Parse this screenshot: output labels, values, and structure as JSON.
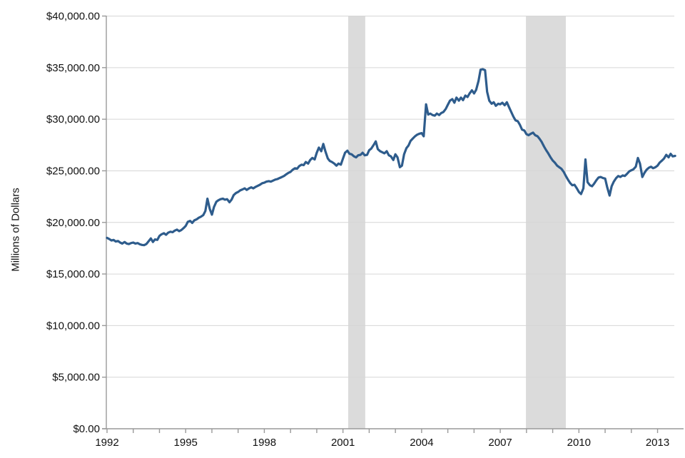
{
  "chart_data": {
    "type": "line",
    "title": "",
    "xlabel": "",
    "ylabel": "Millions of Dollars",
    "x_range": [
      1992,
      2013.75
    ],
    "ylim": [
      0,
      40000
    ],
    "grid": true,
    "legend": "none",
    "line_color": "#2E5C8C",
    "recession_band_color": "#DBDBDB",
    "gridline_color": "#D6D6D6",
    "axis_color": "#999999",
    "y_ticks": [
      {
        "value": 0,
        "label": "$0.00"
      },
      {
        "value": 5000,
        "label": "$5,000.00"
      },
      {
        "value": 10000,
        "label": "$10,000.00"
      },
      {
        "value": 15000,
        "label": "$15,000.00"
      },
      {
        "value": 20000,
        "label": "$20,000.00"
      },
      {
        "value": 25000,
        "label": "$25,000.00"
      },
      {
        "value": 30000,
        "label": "$30,000.00"
      },
      {
        "value": 35000,
        "label": "$35,000.00"
      },
      {
        "value": 40000,
        "label": "$40,000.00"
      }
    ],
    "x_minor_tick_years": [
      1992,
      1993,
      1994,
      1995,
      1996,
      1997,
      1998,
      1999,
      2000,
      2001,
      2002,
      2003,
      2004,
      2005,
      2006,
      2007,
      2008,
      2009,
      2010,
      2011,
      2012,
      2013
    ],
    "x_ticks": [
      {
        "year": 1992,
        "label": "1992"
      },
      {
        "year": 1995,
        "label": "1995"
      },
      {
        "year": 1998,
        "label": "1998"
      },
      {
        "year": 2001,
        "label": "2001"
      },
      {
        "year": 2004,
        "label": "2004"
      },
      {
        "year": 2007,
        "label": "2007"
      },
      {
        "year": 2010,
        "label": "2010"
      },
      {
        "year": 2013,
        "label": "2013"
      }
    ],
    "recession_bands": [
      {
        "start": 2001.2,
        "end": 2001.85
      },
      {
        "start": 2007.98,
        "end": 2009.5
      }
    ],
    "series": [
      {
        "name": "Millions of Dollars",
        "points": [
          [
            1992.0,
            18500
          ],
          [
            1992.08,
            18400
          ],
          [
            1992.17,
            18250
          ],
          [
            1992.25,
            18300
          ],
          [
            1992.33,
            18150
          ],
          [
            1992.42,
            18200
          ],
          [
            1992.5,
            18050
          ],
          [
            1992.58,
            17950
          ],
          [
            1992.67,
            18100
          ],
          [
            1992.75,
            17950
          ],
          [
            1992.83,
            17900
          ],
          [
            1992.92,
            18000
          ],
          [
            1993.0,
            18050
          ],
          [
            1993.08,
            17950
          ],
          [
            1993.17,
            18000
          ],
          [
            1993.25,
            17880
          ],
          [
            1993.33,
            17820
          ],
          [
            1993.42,
            17800
          ],
          [
            1993.5,
            17900
          ],
          [
            1993.58,
            18150
          ],
          [
            1993.67,
            18450
          ],
          [
            1993.75,
            18100
          ],
          [
            1993.83,
            18350
          ],
          [
            1993.92,
            18300
          ],
          [
            1994.0,
            18700
          ],
          [
            1994.08,
            18850
          ],
          [
            1994.17,
            18950
          ],
          [
            1994.25,
            18800
          ],
          [
            1994.33,
            19000
          ],
          [
            1994.42,
            19100
          ],
          [
            1994.5,
            19050
          ],
          [
            1994.58,
            19200
          ],
          [
            1994.67,
            19300
          ],
          [
            1994.75,
            19150
          ],
          [
            1994.83,
            19250
          ],
          [
            1994.92,
            19450
          ],
          [
            1995.0,
            19650
          ],
          [
            1995.08,
            20050
          ],
          [
            1995.17,
            20150
          ],
          [
            1995.25,
            19950
          ],
          [
            1995.33,
            20200
          ],
          [
            1995.42,
            20300
          ],
          [
            1995.5,
            20450
          ],
          [
            1995.58,
            20550
          ],
          [
            1995.67,
            20700
          ],
          [
            1995.75,
            21100
          ],
          [
            1995.83,
            22300
          ],
          [
            1995.92,
            21300
          ],
          [
            1996.0,
            20750
          ],
          [
            1996.08,
            21500
          ],
          [
            1996.17,
            22000
          ],
          [
            1996.25,
            22150
          ],
          [
            1996.33,
            22250
          ],
          [
            1996.42,
            22300
          ],
          [
            1996.5,
            22200
          ],
          [
            1996.58,
            22250
          ],
          [
            1996.67,
            21950
          ],
          [
            1996.75,
            22200
          ],
          [
            1996.83,
            22650
          ],
          [
            1996.92,
            22850
          ],
          [
            1997.0,
            22950
          ],
          [
            1997.08,
            23100
          ],
          [
            1997.17,
            23200
          ],
          [
            1997.25,
            23300
          ],
          [
            1997.33,
            23150
          ],
          [
            1997.42,
            23300
          ],
          [
            1997.5,
            23400
          ],
          [
            1997.58,
            23300
          ],
          [
            1997.67,
            23450
          ],
          [
            1997.75,
            23550
          ],
          [
            1997.83,
            23650
          ],
          [
            1997.92,
            23800
          ],
          [
            1998.0,
            23850
          ],
          [
            1998.08,
            23950
          ],
          [
            1998.17,
            24000
          ],
          [
            1998.25,
            23950
          ],
          [
            1998.33,
            24050
          ],
          [
            1998.42,
            24150
          ],
          [
            1998.5,
            24200
          ],
          [
            1998.58,
            24300
          ],
          [
            1998.67,
            24400
          ],
          [
            1998.75,
            24500
          ],
          [
            1998.83,
            24650
          ],
          [
            1998.92,
            24800
          ],
          [
            1999.0,
            24900
          ],
          [
            1999.08,
            25100
          ],
          [
            1999.17,
            25250
          ],
          [
            1999.25,
            25200
          ],
          [
            1999.33,
            25450
          ],
          [
            1999.42,
            25600
          ],
          [
            1999.5,
            25550
          ],
          [
            1999.58,
            25850
          ],
          [
            1999.67,
            25700
          ],
          [
            1999.75,
            26050
          ],
          [
            1999.83,
            26250
          ],
          [
            1999.92,
            26100
          ],
          [
            2000.0,
            26750
          ],
          [
            2000.08,
            27250
          ],
          [
            2000.17,
            26900
          ],
          [
            2000.25,
            27600
          ],
          [
            2000.33,
            26900
          ],
          [
            2000.42,
            26200
          ],
          [
            2000.5,
            25950
          ],
          [
            2000.58,
            25850
          ],
          [
            2000.67,
            25700
          ],
          [
            2000.75,
            25500
          ],
          [
            2000.83,
            25700
          ],
          [
            2000.92,
            25600
          ],
          [
            2001.0,
            26200
          ],
          [
            2001.08,
            26750
          ],
          [
            2001.17,
            26950
          ],
          [
            2001.25,
            26650
          ],
          [
            2001.33,
            26600
          ],
          [
            2001.42,
            26400
          ],
          [
            2001.5,
            26300
          ],
          [
            2001.58,
            26500
          ],
          [
            2001.67,
            26550
          ],
          [
            2001.75,
            26750
          ],
          [
            2001.83,
            26500
          ],
          [
            2001.92,
            26550
          ],
          [
            2002.0,
            27000
          ],
          [
            2002.08,
            27150
          ],
          [
            2002.17,
            27500
          ],
          [
            2002.25,
            27850
          ],
          [
            2002.33,
            27100
          ],
          [
            2002.42,
            26900
          ],
          [
            2002.5,
            26800
          ],
          [
            2002.58,
            26700
          ],
          [
            2002.67,
            26900
          ],
          [
            2002.75,
            26500
          ],
          [
            2002.83,
            26400
          ],
          [
            2002.92,
            26050
          ],
          [
            2003.0,
            26600
          ],
          [
            2003.08,
            26300
          ],
          [
            2003.17,
            25350
          ],
          [
            2003.25,
            25500
          ],
          [
            2003.33,
            26600
          ],
          [
            2003.42,
            27200
          ],
          [
            2003.5,
            27450
          ],
          [
            2003.58,
            27900
          ],
          [
            2003.67,
            28150
          ],
          [
            2003.75,
            28350
          ],
          [
            2003.83,
            28500
          ],
          [
            2003.92,
            28600
          ],
          [
            2004.0,
            28650
          ],
          [
            2004.08,
            28350
          ],
          [
            2004.17,
            31450
          ],
          [
            2004.25,
            30450
          ],
          [
            2004.33,
            30550
          ],
          [
            2004.42,
            30400
          ],
          [
            2004.5,
            30350
          ],
          [
            2004.58,
            30550
          ],
          [
            2004.67,
            30400
          ],
          [
            2004.75,
            30600
          ],
          [
            2004.83,
            30700
          ],
          [
            2004.92,
            31000
          ],
          [
            2005.0,
            31400
          ],
          [
            2005.08,
            31800
          ],
          [
            2005.17,
            31950
          ],
          [
            2005.25,
            31600
          ],
          [
            2005.33,
            32100
          ],
          [
            2005.42,
            31800
          ],
          [
            2005.5,
            32100
          ],
          [
            2005.58,
            31850
          ],
          [
            2005.67,
            32300
          ],
          [
            2005.75,
            32150
          ],
          [
            2005.83,
            32500
          ],
          [
            2005.92,
            32800
          ],
          [
            2006.0,
            32500
          ],
          [
            2006.08,
            32850
          ],
          [
            2006.17,
            33700
          ],
          [
            2006.25,
            34800
          ],
          [
            2006.33,
            34850
          ],
          [
            2006.42,
            34750
          ],
          [
            2006.5,
            32650
          ],
          [
            2006.58,
            31800
          ],
          [
            2006.67,
            31500
          ],
          [
            2006.75,
            31650
          ],
          [
            2006.83,
            31300
          ],
          [
            2006.92,
            31500
          ],
          [
            2007.0,
            31450
          ],
          [
            2007.08,
            31600
          ],
          [
            2007.17,
            31350
          ],
          [
            2007.25,
            31650
          ],
          [
            2007.33,
            31200
          ],
          [
            2007.42,
            30700
          ],
          [
            2007.5,
            30250
          ],
          [
            2007.58,
            29900
          ],
          [
            2007.67,
            29800
          ],
          [
            2007.75,
            29450
          ],
          [
            2007.83,
            29000
          ],
          [
            2007.92,
            28900
          ],
          [
            2008.0,
            28550
          ],
          [
            2008.08,
            28450
          ],
          [
            2008.17,
            28600
          ],
          [
            2008.25,
            28700
          ],
          [
            2008.33,
            28450
          ],
          [
            2008.42,
            28350
          ],
          [
            2008.5,
            28100
          ],
          [
            2008.58,
            27800
          ],
          [
            2008.67,
            27350
          ],
          [
            2008.75,
            27000
          ],
          [
            2008.83,
            26700
          ],
          [
            2008.92,
            26300
          ],
          [
            2009.0,
            26000
          ],
          [
            2009.08,
            25800
          ],
          [
            2009.17,
            25500
          ],
          [
            2009.25,
            25350
          ],
          [
            2009.33,
            25200
          ],
          [
            2009.42,
            24900
          ],
          [
            2009.5,
            24500
          ],
          [
            2009.58,
            24150
          ],
          [
            2009.67,
            23800
          ],
          [
            2009.75,
            23600
          ],
          [
            2009.83,
            23650
          ],
          [
            2009.92,
            23300
          ],
          [
            2010.0,
            22950
          ],
          [
            2010.08,
            22750
          ],
          [
            2010.17,
            23300
          ],
          [
            2010.25,
            26100
          ],
          [
            2010.33,
            23900
          ],
          [
            2010.42,
            23600
          ],
          [
            2010.5,
            23500
          ],
          [
            2010.58,
            23750
          ],
          [
            2010.67,
            24100
          ],
          [
            2010.75,
            24350
          ],
          [
            2010.83,
            24400
          ],
          [
            2010.92,
            24300
          ],
          [
            2011.0,
            24250
          ],
          [
            2011.08,
            23400
          ],
          [
            2011.17,
            22600
          ],
          [
            2011.25,
            23500
          ],
          [
            2011.33,
            23950
          ],
          [
            2011.42,
            24300
          ],
          [
            2011.5,
            24500
          ],
          [
            2011.58,
            24400
          ],
          [
            2011.67,
            24550
          ],
          [
            2011.75,
            24500
          ],
          [
            2011.83,
            24700
          ],
          [
            2011.92,
            24950
          ],
          [
            2012.0,
            25050
          ],
          [
            2012.08,
            25150
          ],
          [
            2012.17,
            25400
          ],
          [
            2012.25,
            26250
          ],
          [
            2012.33,
            25700
          ],
          [
            2012.42,
            24400
          ],
          [
            2012.5,
            24800
          ],
          [
            2012.58,
            25100
          ],
          [
            2012.67,
            25300
          ],
          [
            2012.75,
            25400
          ],
          [
            2012.83,
            25250
          ],
          [
            2012.92,
            25350
          ],
          [
            2013.0,
            25500
          ],
          [
            2013.08,
            25800
          ],
          [
            2013.17,
            26000
          ],
          [
            2013.25,
            26200
          ],
          [
            2013.33,
            26550
          ],
          [
            2013.42,
            26300
          ],
          [
            2013.5,
            26650
          ],
          [
            2013.58,
            26400
          ],
          [
            2013.67,
            26450
          ]
        ]
      }
    ]
  }
}
